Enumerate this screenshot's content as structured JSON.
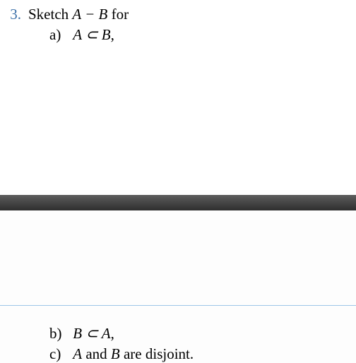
{
  "question": {
    "number": "3.",
    "prompt_pre": "Sketch ",
    "prompt_math": "A − B",
    "prompt_post": " for"
  },
  "items": {
    "a": {
      "label": "a)",
      "math": "A ⊂ B",
      "tail": ","
    },
    "b": {
      "label": "b)",
      "math": "B ⊂ A",
      "tail": ","
    },
    "c": {
      "label": "c)",
      "pre": "",
      "mathA": "A",
      "mid": " and ",
      "mathB": "B",
      "post": " are disjoint."
    }
  },
  "colors": {
    "number": "#3b6fa8",
    "text": "#000000",
    "bar_top": "#5d5d5d",
    "bar_bot": "#2e2e2e",
    "rule": "#9ec5e8",
    "bg": "#ffffff"
  },
  "typography": {
    "font_family": "Times New Roman",
    "font_size_pt": 16
  }
}
